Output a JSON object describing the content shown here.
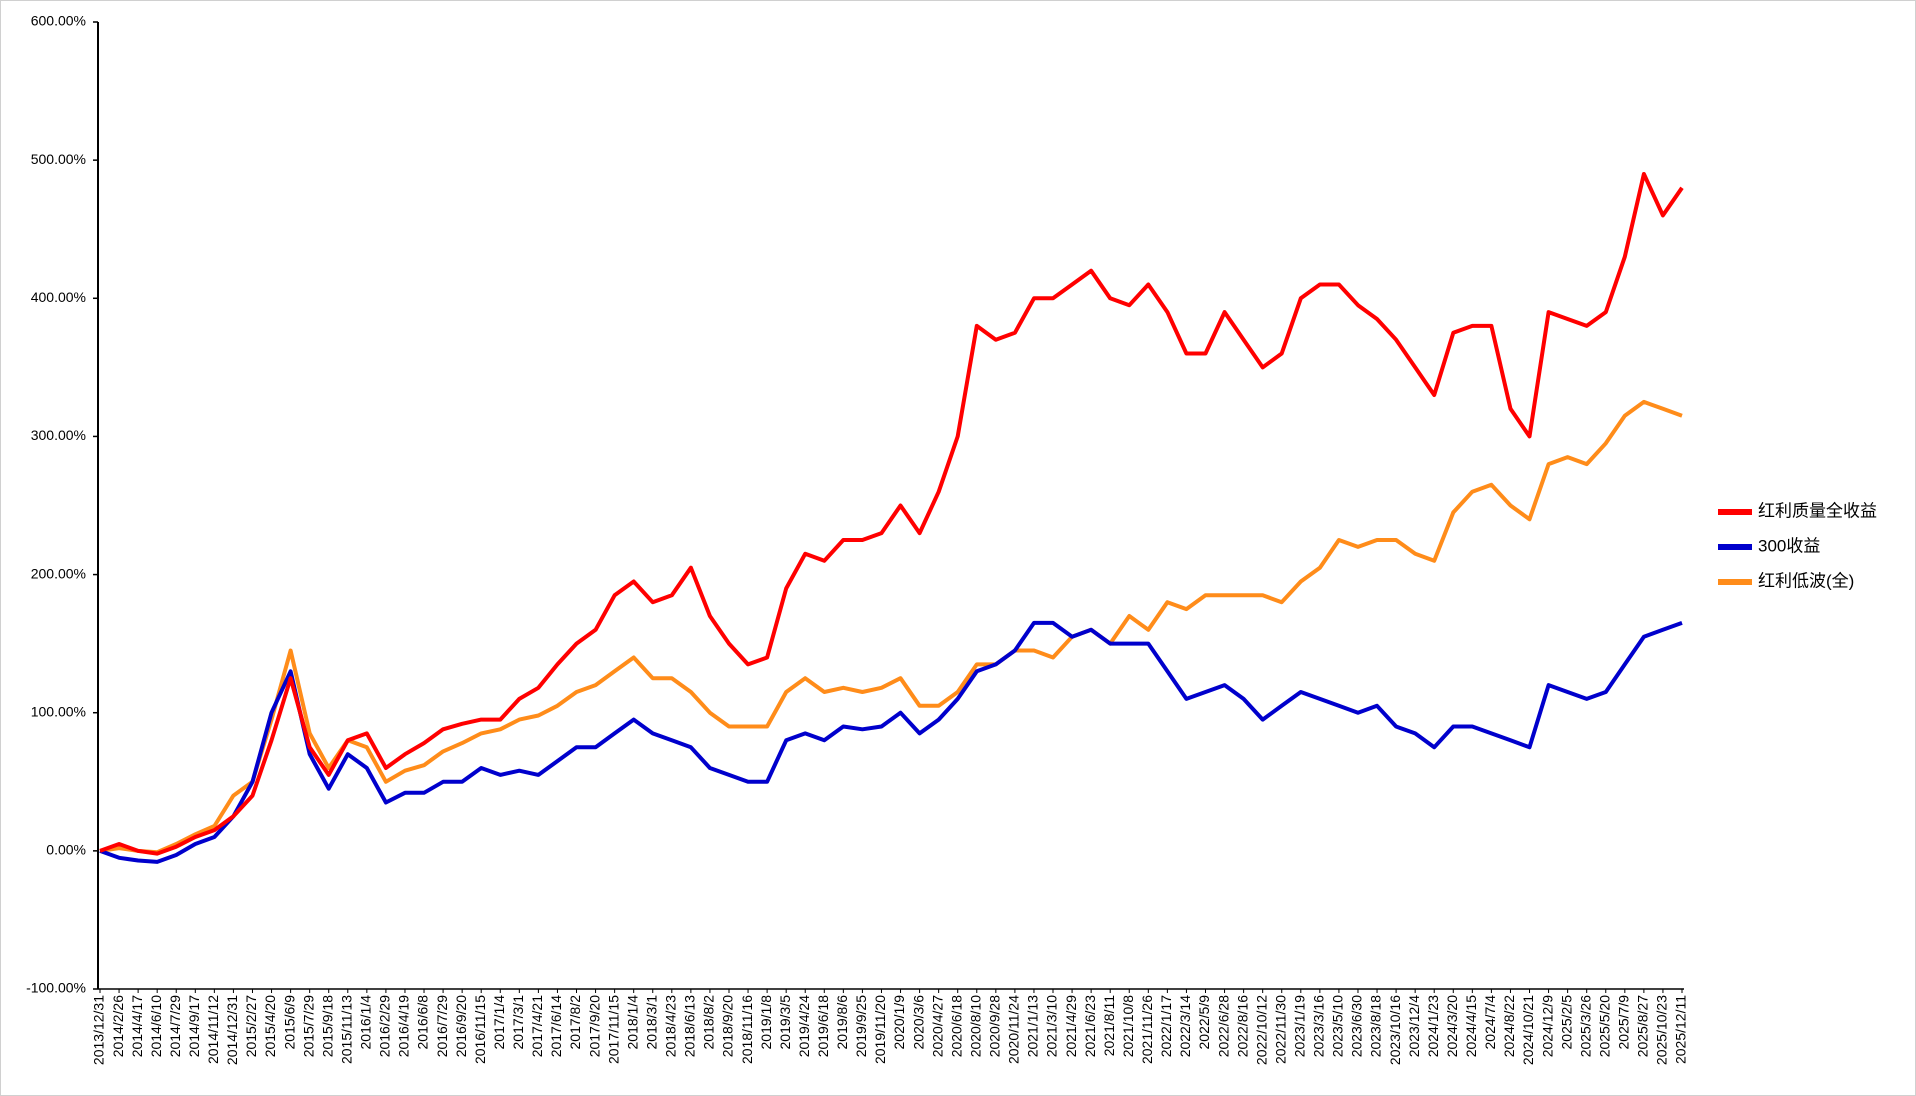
{
  "chart_data": {
    "type": "line",
    "categories": [
      "2013/12/31",
      "2014/2/26",
      "2014/4/17",
      "2014/6/10",
      "2014/7/29",
      "2014/9/17",
      "2014/11/12",
      "2014/12/31",
      "2015/2/27",
      "2015/4/20",
      "2015/6/9",
      "2015/7/29",
      "2015/9/18",
      "2015/11/13",
      "2016/1/4",
      "2016/2/29",
      "2016/4/19",
      "2016/6/8",
      "2016/7/29",
      "2016/9/20",
      "2016/11/15",
      "2017/1/4",
      "2017/3/1",
      "2017/4/21",
      "2017/6/14",
      "2017/8/2",
      "2017/9/20",
      "2017/11/15",
      "2018/1/4",
      "2018/3/1",
      "2018/4/23",
      "2018/6/13",
      "2018/8/2",
      "2018/9/20",
      "2018/11/16",
      "2019/1/8",
      "2019/3/5",
      "2019/4/24",
      "2019/6/18",
      "2019/8/6",
      "2019/9/25",
      "2019/11/20",
      "2020/1/9",
      "2020/3/6",
      "2020/4/27",
      "2020/6/18",
      "2020/8/10",
      "2020/9/28",
      "2020/11/24",
      "2021/1/13",
      "2021/3/10",
      "2021/4/29",
      "2021/6/23",
      "2021/8/11",
      "2021/10/8",
      "2021/11/26",
      "2022/1/17",
      "2022/3/14",
      "2022/5/9",
      "2022/6/28",
      "2022/8/16",
      "2022/10/12",
      "2022/11/30",
      "2023/1/19",
      "2023/3/16",
      "2023/5/10",
      "2023/6/30",
      "2023/8/18",
      "2023/10/16",
      "2023/12/4",
      "2024/1/23",
      "2024/3/20",
      "2024/4/15",
      "2024/7/4",
      "2024/8/22",
      "2024/10/21",
      "2024/12/9",
      "2025/2/5",
      "2025/3/26",
      "2025/5/20",
      "2025/7/9",
      "2025/8/27",
      "2025/10/23",
      "2025/12/11"
    ],
    "series": [
      {
        "name": "红利质量全收益",
        "color": "#ff0000",
        "values": [
          0,
          5,
          0,
          -2,
          3,
          10,
          15,
          25,
          40,
          80,
          125,
          75,
          55,
          80,
          85,
          60,
          70,
          78,
          88,
          92,
          95,
          95,
          110,
          118,
          135,
          150,
          160,
          185,
          195,
          180,
          185,
          205,
          170,
          150,
          135,
          140,
          190,
          215,
          210,
          225,
          225,
          230,
          250,
          230,
          260,
          300,
          380,
          370,
          375,
          400,
          400,
          410,
          420,
          400,
          395,
          410,
          390,
          360,
          360,
          390,
          370,
          350,
          360,
          400,
          410,
          410,
          395,
          385,
          370,
          350,
          330,
          375,
          380,
          380,
          320,
          300,
          390,
          385,
          380,
          390,
          430,
          490,
          460,
          480
        ]
      },
      {
        "name": "300收益",
        "color": "#0000cc",
        "values": [
          0,
          -5,
          -7,
          -8,
          -3,
          5,
          10,
          25,
          50,
          100,
          130,
          70,
          45,
          70,
          60,
          35,
          42,
          42,
          50,
          50,
          60,
          55,
          58,
          55,
          65,
          75,
          75,
          85,
          95,
          85,
          80,
          75,
          60,
          55,
          50,
          50,
          80,
          85,
          80,
          90,
          88,
          90,
          100,
          85,
          95,
          110,
          130,
          135,
          145,
          165,
          165,
          155,
          160,
          150,
          150,
          150,
          130,
          110,
          115,
          120,
          110,
          95,
          105,
          115,
          110,
          105,
          100,
          105,
          90,
          85,
          75,
          90,
          90,
          85,
          80,
          75,
          120,
          115,
          110,
          115,
          135,
          155,
          160,
          165
        ]
      },
      {
        "name": "红利低波(全)",
        "color": "#ff8c1a",
        "values": [
          0,
          2,
          0,
          -1,
          5,
          12,
          18,
          40,
          50,
          95,
          145,
          85,
          60,
          80,
          75,
          50,
          58,
          62,
          72,
          78,
          85,
          88,
          95,
          98,
          105,
          115,
          120,
          130,
          140,
          125,
          125,
          115,
          100,
          90,
          90,
          90,
          115,
          125,
          115,
          118,
          115,
          118,
          125,
          105,
          105,
          115,
          135,
          135,
          145,
          145,
          140,
          155,
          160,
          150,
          170,
          160,
          180,
          175,
          185,
          185,
          185,
          185,
          180,
          195,
          205,
          225,
          220,
          225,
          225,
          215,
          210,
          245,
          260,
          265,
          250,
          240,
          280,
          285,
          280,
          295,
          315,
          325,
          320,
          315
        ]
      }
    ],
    "ylim": [
      -100,
      600
    ],
    "yticks": [
      {
        "value": -100,
        "label": "-100.00%"
      },
      {
        "value": 0,
        "label": "0.00%"
      },
      {
        "value": 100,
        "label": "100.00%"
      },
      {
        "value": 200,
        "label": "200.00%"
      },
      {
        "value": 300,
        "label": "300.00%"
      },
      {
        "value": 400,
        "label": "400.00%"
      },
      {
        "value": 500,
        "label": "500.00%"
      },
      {
        "value": 600,
        "label": "600.00%"
      }
    ]
  }
}
